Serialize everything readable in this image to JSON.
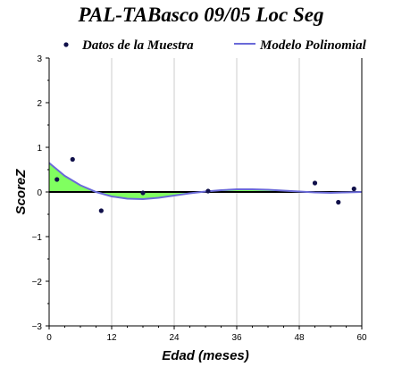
{
  "chart_data": {
    "type": "scatter",
    "title": "PAL-TABasco 09/05 Loc Seg",
    "xlabel": "Edad (meses)",
    "ylabel": "ScoreZ",
    "xlim": [
      0,
      60
    ],
    "ylim": [
      -3,
      3
    ],
    "xticks": [
      0,
      12,
      24,
      36,
      48,
      60
    ],
    "yticks": [
      -3,
      -2,
      -1,
      0,
      1,
      2,
      3
    ],
    "xtick_labels": [
      "0",
      "12",
      "24",
      "36",
      "48",
      "60"
    ],
    "ytick_labels": [
      "−3",
      "−2",
      "−1",
      "0",
      "1",
      "2",
      "3"
    ],
    "grid": true,
    "legend_position": "top",
    "legend": [
      {
        "label": "Datos de la Muestra",
        "kind": "marker",
        "color": "#10104a"
      },
      {
        "label": "Modelo Polinomial",
        "kind": "line",
        "color": "#6a6ad8"
      }
    ],
    "series": [
      {
        "name": "Datos de la Muestra",
        "kind": "scatter",
        "color": "#10104a",
        "x": [
          1.5,
          4.5,
          10,
          18,
          30.5,
          51,
          55.5,
          58.5
        ],
        "y": [
          0.28,
          0.73,
          -0.42,
          -0.02,
          0.02,
          0.2,
          -0.23,
          0.07
        ]
      },
      {
        "name": "Modelo Polinomial",
        "kind": "line",
        "color": "#6a6ad8",
        "x": [
          0,
          3,
          6,
          9,
          12,
          15,
          18,
          21,
          24,
          27,
          30,
          33,
          36,
          39,
          42,
          45,
          48,
          51,
          54,
          57,
          60
        ],
        "y": [
          0.65,
          0.36,
          0.15,
          0.0,
          -0.1,
          -0.15,
          -0.16,
          -0.13,
          -0.08,
          -0.03,
          0.01,
          0.04,
          0.06,
          0.06,
          0.05,
          0.03,
          0.01,
          -0.01,
          -0.02,
          -0.01,
          0.0
        ]
      }
    ],
    "fill_colors": {
      "positive": "#80ff60",
      "negative": "#f04040"
    },
    "zero_line_color": "#000000",
    "grid_color": "#cccccc"
  }
}
